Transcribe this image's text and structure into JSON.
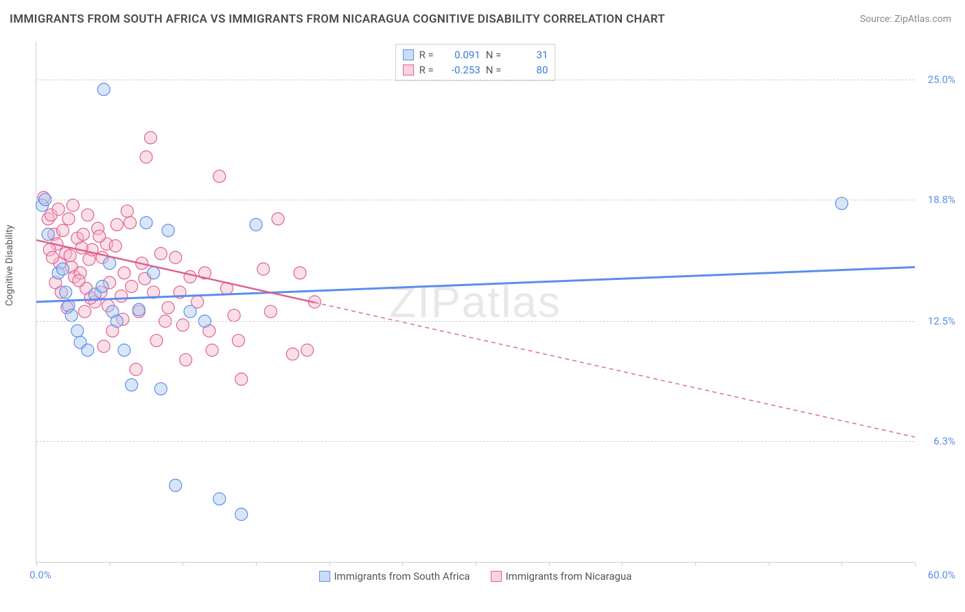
{
  "title": "IMMIGRANTS FROM SOUTH AFRICA VS IMMIGRANTS FROM NICARAGUA COGNITIVE DISABILITY CORRELATION CHART",
  "source": "Source: ZipAtlas.com",
  "watermark": "ZIPatlas",
  "y_axis_label": "Cognitive Disability",
  "chart": {
    "type": "scatter",
    "xlim": [
      0,
      60
    ],
    "ylim": [
      0,
      27
    ],
    "x_tick_positions": [
      0,
      5,
      10,
      15,
      20,
      25,
      30,
      35,
      40,
      45,
      50,
      55,
      60
    ],
    "y_ticks": [
      {
        "value": 6.3,
        "label": "6.3%"
      },
      {
        "value": 12.5,
        "label": "12.5%"
      },
      {
        "value": 18.8,
        "label": "18.8%"
      },
      {
        "value": 25.0,
        "label": "25.0%"
      }
    ],
    "x_min_label": "0.0%",
    "x_max_label": "60.0%",
    "grid_color": "#d0d0d0",
    "background_color": "#ffffff",
    "marker_radius": 9,
    "marker_opacity": 0.45,
    "series": [
      {
        "name": "Immigrants from South Africa",
        "color_fill": "#a8c8f0",
        "color_stroke": "#5b8def",
        "R": "0.091",
        "N": "31",
        "trend": {
          "x1": 0,
          "y1": 13.5,
          "x2": 60,
          "y2": 15.3,
          "solid_until_x": 60,
          "width": 3
        },
        "points": [
          [
            0.4,
            18.5
          ],
          [
            0.6,
            18.8
          ],
          [
            0.8,
            17.0
          ],
          [
            1.5,
            15.0
          ],
          [
            1.8,
            15.2
          ],
          [
            2.0,
            14.0
          ],
          [
            2.2,
            13.3
          ],
          [
            2.4,
            12.8
          ],
          [
            2.8,
            12.0
          ],
          [
            3.0,
            11.4
          ],
          [
            3.5,
            11.0
          ],
          [
            4.0,
            13.9
          ],
          [
            4.5,
            14.3
          ],
          [
            4.6,
            24.5
          ],
          [
            5.0,
            15.5
          ],
          [
            5.2,
            13.0
          ],
          [
            5.5,
            12.5
          ],
          [
            6.0,
            11.0
          ],
          [
            6.5,
            9.2
          ],
          [
            7.0,
            13.1
          ],
          [
            7.5,
            17.6
          ],
          [
            8.0,
            15.0
          ],
          [
            8.5,
            9.0
          ],
          [
            9.0,
            17.2
          ],
          [
            10.5,
            13.0
          ],
          [
            11.5,
            12.5
          ],
          [
            12.5,
            3.3
          ],
          [
            15.0,
            17.5
          ],
          [
            14.0,
            2.5
          ],
          [
            9.5,
            4.0
          ],
          [
            55.0,
            18.6
          ]
        ]
      },
      {
        "name": "Immigrants from Nicaragua",
        "color_fill": "#f5b8cc",
        "color_stroke": "#e06090",
        "R": "-0.253",
        "N": "80",
        "trend": {
          "x1": 0,
          "y1": 16.7,
          "x2": 60,
          "y2": 6.5,
          "solid_until_x": 19,
          "width": 2.5
        },
        "points": [
          [
            0.5,
            18.9
          ],
          [
            0.8,
            17.8
          ],
          [
            1.0,
            18.0
          ],
          [
            1.2,
            17.0
          ],
          [
            1.4,
            16.5
          ],
          [
            1.5,
            18.3
          ],
          [
            1.6,
            15.5
          ],
          [
            1.8,
            17.2
          ],
          [
            2.0,
            16.0
          ],
          [
            2.2,
            17.8
          ],
          [
            2.4,
            15.3
          ],
          [
            2.5,
            18.5
          ],
          [
            2.6,
            14.8
          ],
          [
            2.8,
            16.8
          ],
          [
            3.0,
            15.0
          ],
          [
            3.2,
            17.0
          ],
          [
            3.4,
            14.2
          ],
          [
            3.5,
            18.0
          ],
          [
            3.6,
            15.7
          ],
          [
            3.8,
            16.2
          ],
          [
            4.0,
            13.5
          ],
          [
            4.2,
            17.3
          ],
          [
            4.4,
            14.0
          ],
          [
            4.5,
            15.8
          ],
          [
            4.8,
            16.5
          ],
          [
            5.0,
            14.5
          ],
          [
            5.2,
            12.0
          ],
          [
            5.5,
            17.5
          ],
          [
            5.8,
            13.8
          ],
          [
            6.0,
            15.0
          ],
          [
            6.2,
            18.2
          ],
          [
            6.5,
            14.3
          ],
          [
            7.0,
            13.0
          ],
          [
            7.2,
            15.5
          ],
          [
            7.5,
            21.0
          ],
          [
            8.0,
            14.0
          ],
          [
            8.2,
            11.5
          ],
          [
            8.5,
            16.0
          ],
          [
            9.0,
            13.2
          ],
          [
            9.5,
            15.8
          ],
          [
            10.0,
            12.3
          ],
          [
            10.2,
            10.5
          ],
          [
            10.5,
            14.8
          ],
          [
            11.0,
            13.5
          ],
          [
            11.5,
            15.0
          ],
          [
            12.0,
            11.0
          ],
          [
            12.5,
            20.0
          ],
          [
            13.0,
            14.2
          ],
          [
            13.5,
            12.8
          ],
          [
            14.0,
            9.5
          ],
          [
            15.5,
            15.2
          ],
          [
            16.0,
            13.0
          ],
          [
            17.5,
            10.8
          ],
          [
            18.0,
            15.0
          ],
          [
            19.0,
            13.5
          ],
          [
            7.8,
            22.0
          ],
          [
            6.8,
            10.0
          ],
          [
            4.6,
            11.2
          ],
          [
            3.3,
            13.0
          ],
          [
            2.1,
            13.2
          ],
          [
            1.3,
            14.5
          ],
          [
            0.9,
            16.2
          ],
          [
            1.1,
            15.8
          ],
          [
            1.7,
            14.0
          ],
          [
            2.3,
            15.9
          ],
          [
            2.9,
            14.6
          ],
          [
            3.1,
            16.3
          ],
          [
            3.7,
            13.7
          ],
          [
            4.3,
            16.9
          ],
          [
            4.9,
            13.3
          ],
          [
            5.4,
            16.4
          ],
          [
            5.9,
            12.6
          ],
          [
            6.4,
            17.6
          ],
          [
            7.4,
            14.7
          ],
          [
            8.8,
            12.5
          ],
          [
            9.8,
            14.0
          ],
          [
            11.8,
            12.0
          ],
          [
            13.8,
            11.5
          ],
          [
            16.5,
            17.8
          ],
          [
            18.5,
            11.0
          ]
        ]
      }
    ]
  },
  "colors": {
    "title": "#4a4a4a",
    "source": "#888888",
    "axis_text": "#555555",
    "tick_blue": "#5b8def",
    "watermark": "#e8e8e8"
  }
}
